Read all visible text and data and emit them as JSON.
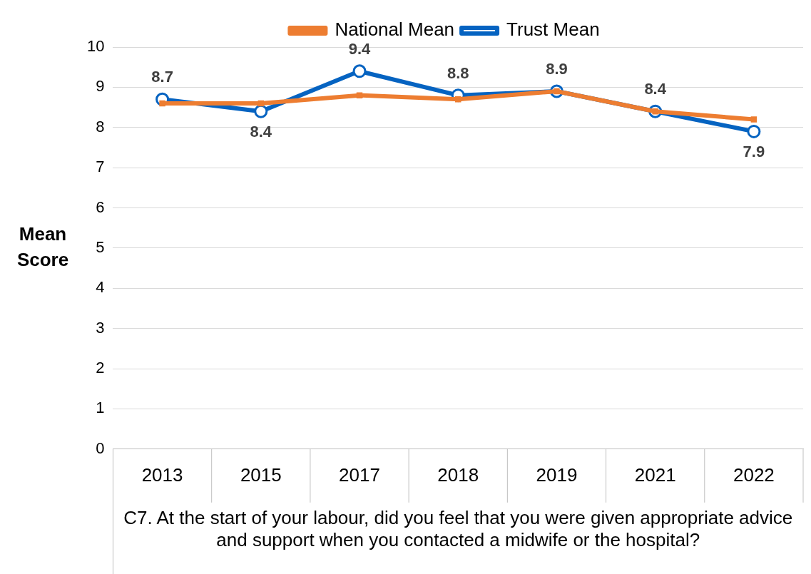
{
  "chart_data": {
    "type": "line",
    "categories": [
      "2013",
      "2015",
      "2017",
      "2018",
      "2019",
      "2021",
      "2022"
    ],
    "series": [
      {
        "name": "Trust Mean",
        "color": "#0563c1",
        "values": [
          8.7,
          8.4,
          9.4,
          8.8,
          8.9,
          8.4,
          7.9
        ],
        "value_labels": [
          "8.7",
          "8.4",
          "9.4",
          "8.8",
          "8.9",
          "8.4",
          "7.9"
        ],
        "marker": "circle"
      },
      {
        "name": "National Mean",
        "color": "#ed7d31",
        "values": [
          8.6,
          8.6,
          8.8,
          8.7,
          8.9,
          8.4,
          8.2
        ],
        "marker": "square"
      }
    ],
    "ylabel": "Mean Score",
    "xlabel": "C7. At the start of your labour, did you feel that you were given appropriate advice and support when you contacted a midwife or the hospital?",
    "ylim": [
      0,
      10
    ],
    "yticks": [
      0,
      1,
      2,
      3,
      4,
      5,
      6,
      7,
      8,
      9,
      10
    ],
    "grid": "y",
    "legend": "top"
  }
}
